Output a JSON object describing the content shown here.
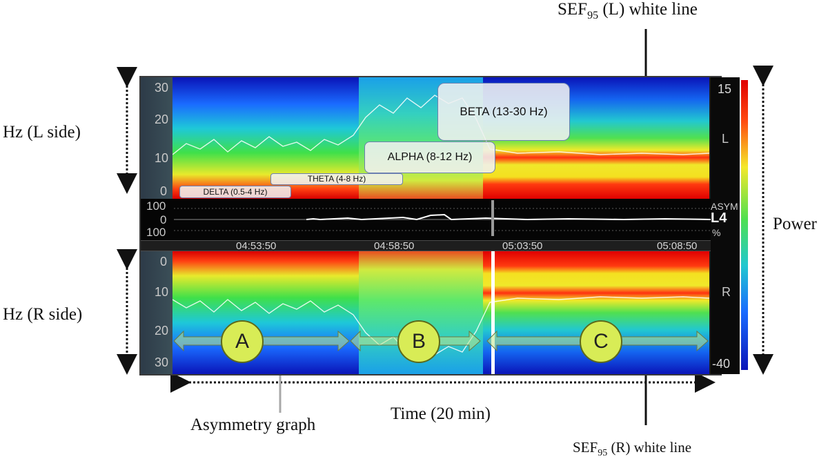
{
  "labels": {
    "hz_left": "Hz (L side)",
    "hz_right": "Hz (R side)",
    "power": "Power",
    "time": "Time (20 min)",
    "sef_left_prefix": "SEF",
    "sef_left_sub": "95",
    "sef_left_suffix": " (L) white line",
    "sef_right_prefix": "SEF",
    "sef_right_sub": "95",
    "sef_right_suffix": " (R) white line",
    "asymmetry": "Asymmetry graph"
  },
  "bands": {
    "delta": "DELTA (0.5-4 Hz)",
    "theta": "THETA (4-8 Hz)",
    "alpha": "ALPHA (8-12 Hz)",
    "beta": "BETA (13-30 Hz)"
  },
  "axis": {
    "left_ticks": [
      "30",
      "20",
      "10",
      "0"
    ],
    "right_ticks": [
      "0",
      "10",
      "20",
      "30"
    ],
    "asym_ticks": [
      "100",
      "0",
      "100"
    ],
    "time_ticks": [
      "04:53:50",
      "04:58:50",
      "05:03:50",
      "05:08:50"
    ]
  },
  "side": {
    "left": "L",
    "right": "R",
    "asym_title": "ASYM",
    "asym_value": "L4",
    "asym_unit": "%"
  },
  "colorbar": {
    "max": "15",
    "min": "-40"
  },
  "segments": {
    "a": "A",
    "b": "B",
    "c": "C"
  },
  "colors": {
    "spectrum": [
      "#0a10b0",
      "#1a6bff",
      "#1ec8d8",
      "#3fe04a",
      "#f4ec2a",
      "#ff3a10",
      "#e00000"
    ]
  }
}
